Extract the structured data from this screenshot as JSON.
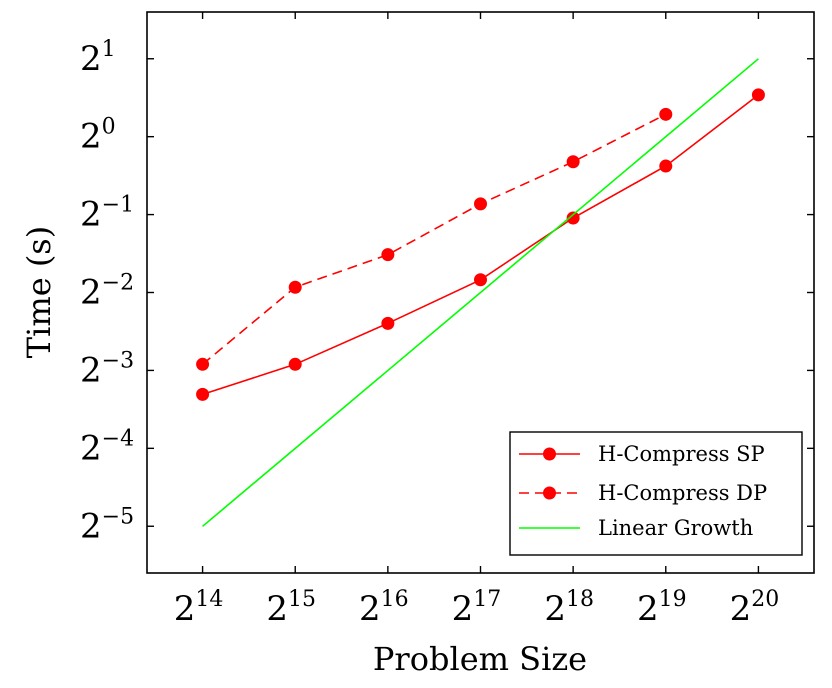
{
  "chart_data": {
    "type": "line",
    "xlabel": "Problem Size",
    "ylabel": "Time (s)",
    "scale": {
      "x": "log2",
      "y": "log2"
    },
    "xlim_exp": [
      13.4,
      20.6
    ],
    "ylim_exp": [
      -5.6,
      1.6
    ],
    "x_ticks": [
      {
        "base": "2",
        "exp": "14",
        "value": 16384
      },
      {
        "base": "2",
        "exp": "15",
        "value": 32768
      },
      {
        "base": "2",
        "exp": "16",
        "value": 65536
      },
      {
        "base": "2",
        "exp": "17",
        "value": 131072
      },
      {
        "base": "2",
        "exp": "18",
        "value": 262144
      },
      {
        "base": "2",
        "exp": "19",
        "value": 524288
      },
      {
        "base": "2",
        "exp": "20",
        "value": 1048576
      }
    ],
    "y_ticks": [
      {
        "base": "2",
        "exp": "1",
        "value": 2
      },
      {
        "base": "2",
        "exp": "0",
        "value": 1
      },
      {
        "base": "2",
        "exp": "−1",
        "value": 0.5
      },
      {
        "base": "2",
        "exp": "−2",
        "value": 0.25
      },
      {
        "base": "2",
        "exp": "−3",
        "value": 0.125
      },
      {
        "base": "2",
        "exp": "−4",
        "value": 0.0625
      },
      {
        "base": "2",
        "exp": "−5",
        "value": 0.03125
      }
    ],
    "grid": false,
    "legend_position": "bottom-right",
    "series": [
      {
        "name": "H-Compress SP",
        "color": "#ff0000",
        "dash": "solid",
        "marker": "circle",
        "x": [
          16384,
          32768,
          65536,
          131072,
          262144,
          524288,
          1048576
        ],
        "y": [
          0.101,
          0.132,
          0.19,
          0.28,
          0.485,
          0.77,
          1.45
        ]
      },
      {
        "name": "H-Compress DP",
        "color": "#ff0000",
        "dash": "dashed",
        "marker": "circle",
        "x": [
          16384,
          32768,
          65536,
          131072,
          262144,
          524288
        ],
        "y": [
          0.132,
          0.262,
          0.35,
          0.55,
          0.8,
          1.22
        ]
      },
      {
        "name": "Linear Growth",
        "color": "#00ff00",
        "dash": "solid",
        "marker": "none",
        "x": [
          16384,
          1048576
        ],
        "y": [
          0.03125,
          2
        ]
      }
    ]
  }
}
